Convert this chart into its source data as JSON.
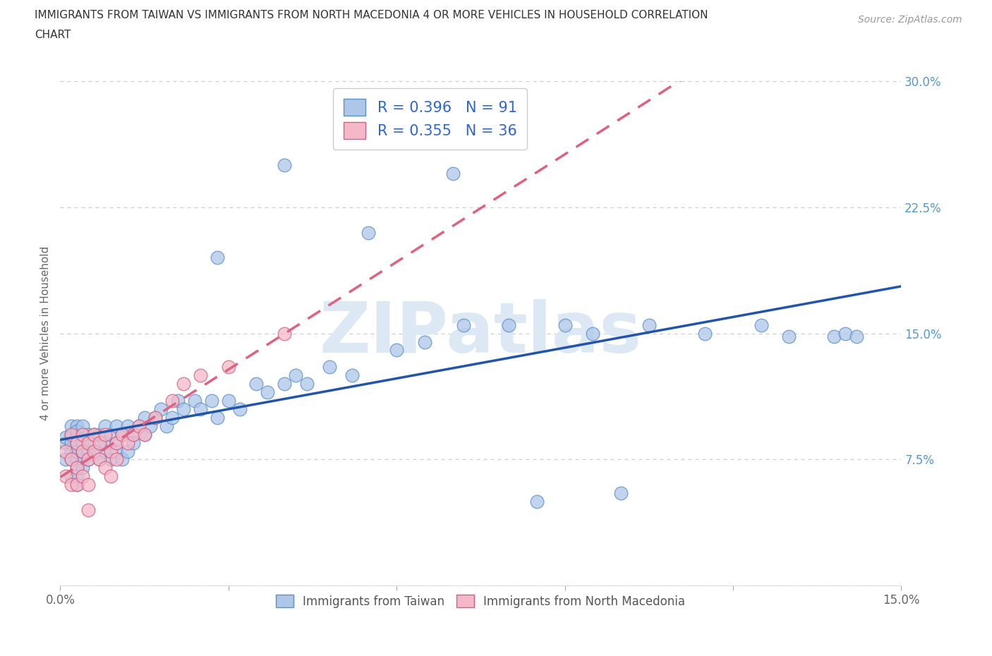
{
  "title_line1": "IMMIGRANTS FROM TAIWAN VS IMMIGRANTS FROM NORTH MACEDONIA 4 OR MORE VEHICLES IN HOUSEHOLD CORRELATION",
  "title_line2": "CHART",
  "source": "Source: ZipAtlas.com",
  "ylabel": "4 or more Vehicles in Household",
  "taiwan_color": "#aec6e8",
  "taiwan_edge": "#5b8fc9",
  "nmacedonia_color": "#f5b8c9",
  "nmacedonia_edge": "#d06080",
  "taiwan_R": 0.396,
  "taiwan_N": 91,
  "nmacedonia_R": 0.355,
  "nmacedonia_N": 36,
  "taiwan_line_color": "#2255aa",
  "nmacedonia_line_color": "#e06080",
  "legend1_label": "Immigrants from Taiwan",
  "legend2_label": "Immigrants from North Macedonia",
  "xlim": [
    0.0,
    0.15
  ],
  "ylim": [
    0.0,
    0.3
  ],
  "watermark_text": "ZIPatlas",
  "watermark_color": "#dde8f5",
  "bg_color": "#ffffff",
  "grid_color": "#cccccc",
  "tw_x": [
    0.001,
    0.001,
    0.001,
    0.002,
    0.002,
    0.002,
    0.002,
    0.002,
    0.002,
    0.003,
    0.003,
    0.003,
    0.003,
    0.003,
    0.003,
    0.003,
    0.003,
    0.003,
    0.003,
    0.004,
    0.004,
    0.004,
    0.004,
    0.004,
    0.004,
    0.005,
    0.005,
    0.005,
    0.005,
    0.006,
    0.006,
    0.006,
    0.007,
    0.007,
    0.007,
    0.008,
    0.008,
    0.008,
    0.009,
    0.009,
    0.01,
    0.01,
    0.01,
    0.011,
    0.011,
    0.012,
    0.012,
    0.013,
    0.013,
    0.014,
    0.015,
    0.015,
    0.016,
    0.017,
    0.018,
    0.019,
    0.02,
    0.021,
    0.022,
    0.024,
    0.025,
    0.027,
    0.028,
    0.03,
    0.032,
    0.035,
    0.037,
    0.04,
    0.042,
    0.044,
    0.048,
    0.052,
    0.06,
    0.065,
    0.072,
    0.08,
    0.09,
    0.095,
    0.105,
    0.115,
    0.125,
    0.13,
    0.138,
    0.14,
    0.142,
    0.028,
    0.04,
    0.055,
    0.07,
    0.085,
    0.1
  ],
  "tw_y": [
    0.085,
    0.088,
    0.075,
    0.09,
    0.08,
    0.095,
    0.065,
    0.075,
    0.085,
    0.09,
    0.08,
    0.075,
    0.085,
    0.095,
    0.07,
    0.06,
    0.08,
    0.092,
    0.065,
    0.085,
    0.075,
    0.09,
    0.08,
    0.07,
    0.095,
    0.08,
    0.09,
    0.075,
    0.085,
    0.09,
    0.08,
    0.078,
    0.085,
    0.09,
    0.075,
    0.095,
    0.08,
    0.085,
    0.09,
    0.075,
    0.095,
    0.085,
    0.08,
    0.09,
    0.075,
    0.095,
    0.08,
    0.09,
    0.085,
    0.095,
    0.09,
    0.1,
    0.095,
    0.1,
    0.105,
    0.095,
    0.1,
    0.11,
    0.105,
    0.11,
    0.105,
    0.11,
    0.1,
    0.11,
    0.105,
    0.12,
    0.115,
    0.12,
    0.125,
    0.12,
    0.13,
    0.125,
    0.14,
    0.145,
    0.155,
    0.155,
    0.155,
    0.15,
    0.155,
    0.15,
    0.155,
    0.148,
    0.148,
    0.15,
    0.148,
    0.195,
    0.25,
    0.21,
    0.245,
    0.05,
    0.055
  ],
  "nm_x": [
    0.001,
    0.001,
    0.002,
    0.002,
    0.002,
    0.003,
    0.003,
    0.003,
    0.004,
    0.004,
    0.004,
    0.005,
    0.005,
    0.005,
    0.006,
    0.006,
    0.007,
    0.007,
    0.008,
    0.008,
    0.009,
    0.009,
    0.01,
    0.01,
    0.011,
    0.012,
    0.013,
    0.014,
    0.015,
    0.017,
    0.02,
    0.022,
    0.025,
    0.03,
    0.04,
    0.005
  ],
  "nm_y": [
    0.065,
    0.08,
    0.075,
    0.06,
    0.09,
    0.07,
    0.085,
    0.06,
    0.08,
    0.065,
    0.09,
    0.075,
    0.085,
    0.06,
    0.08,
    0.09,
    0.075,
    0.085,
    0.07,
    0.09,
    0.08,
    0.065,
    0.085,
    0.075,
    0.09,
    0.085,
    0.09,
    0.095,
    0.09,
    0.1,
    0.11,
    0.12,
    0.125,
    0.13,
    0.15,
    0.045
  ]
}
